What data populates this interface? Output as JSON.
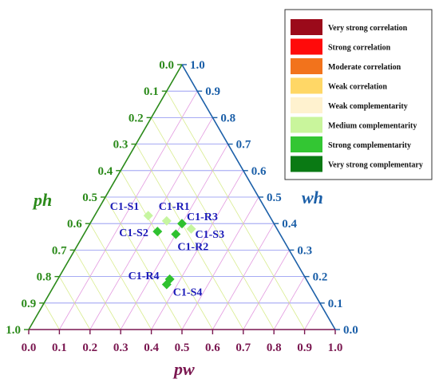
{
  "chart_data": {
    "type": "scatter",
    "ternary": true,
    "axes": {
      "bottom": {
        "label": "pw",
        "ticks": [
          "0.0",
          "0.1",
          "0.2",
          "0.3",
          "0.4",
          "0.5",
          "0.6",
          "0.7",
          "0.8",
          "0.9",
          "1.0"
        ],
        "color": "#7a1750"
      },
      "left": {
        "label": "ph",
        "ticks": [
          "0.0",
          "0.1",
          "0.2",
          "0.3",
          "0.4",
          "0.5",
          "0.6",
          "0.7",
          "0.8",
          "0.9",
          "1.0"
        ],
        "color": "#2b8a1a"
      },
      "right": {
        "label": "wh",
        "ticks": [
          "0.0",
          "0.1",
          "0.2",
          "0.3",
          "0.4",
          "0.5",
          "0.6",
          "0.7",
          "0.8",
          "0.9",
          "1.0"
        ],
        "color": "#1b5fa8"
      }
    },
    "points": [
      {
        "label": "C1-S1",
        "pw": 0.39,
        "ph": 0.58,
        "wh": 0.43,
        "category": "Medium complementarity",
        "color": "#c6f5a0"
      },
      {
        "label": "C1-R1",
        "pw": 0.45,
        "ph": 0.55,
        "wh": 0.41,
        "category": "Medium complementarity",
        "color": "#c6f5a0"
      },
      {
        "label": "C1-R3",
        "pw": 0.5,
        "ph": 0.52,
        "wh": 0.4,
        "category": "Strong complementarity",
        "color": "#2fc12f"
      },
      {
        "label": "C1-S3",
        "pw": 0.53,
        "ph": 0.51,
        "wh": 0.38,
        "category": "Medium complementarity",
        "color": "#c6f5a0"
      },
      {
        "label": "C1-S2",
        "pw": 0.42,
        "ph": 0.62,
        "wh": 0.37,
        "category": "Strong complementarity",
        "color": "#2fc12f"
      },
      {
        "label": "C1-R2",
        "pw": 0.48,
        "ph": 0.58,
        "wh": 0.36,
        "category": "Strong complementarity",
        "color": "#2fc12f"
      },
      {
        "label": "C1-R4",
        "pw": 0.46,
        "ph": 0.8,
        "wh": 0.19,
        "category": "Strong complementarity",
        "color": "#2fc12f"
      },
      {
        "label": "C1-S4",
        "pw": 0.45,
        "ph": 0.83,
        "wh": 0.17,
        "category": "Strong complementarity",
        "color": "#2fc12f"
      }
    ],
    "legend": {
      "position": "top-right",
      "entries": [
        {
          "label": "Very strong correlation",
          "color": "#9b0a1a"
        },
        {
          "label": "Strong correlation",
          "color": "#ff0a0a"
        },
        {
          "label": "Moderate correlation",
          "color": "#f2731c"
        },
        {
          "label": "Weak correlation",
          "color": "#ffd766"
        },
        {
          "label": "Weak complementarity",
          "color": "#fff2cf"
        },
        {
          "label": "Medium complementarity",
          "color": "#c9f59c"
        },
        {
          "label": "Strong complementarity",
          "color": "#33c633"
        },
        {
          "label": "Very strong complementary",
          "color": "#0a7a14"
        }
      ]
    },
    "gridlines": true,
    "grid_colors": {
      "ph_lines": "#8a8ff0",
      "pw_lines": "#e39ae0",
      "wh_lines": "#d8ec8e"
    },
    "frame_colors": {
      "left": "#2b8a1a",
      "right": "#1b5fa8",
      "bottom": "#7a1750"
    }
  }
}
